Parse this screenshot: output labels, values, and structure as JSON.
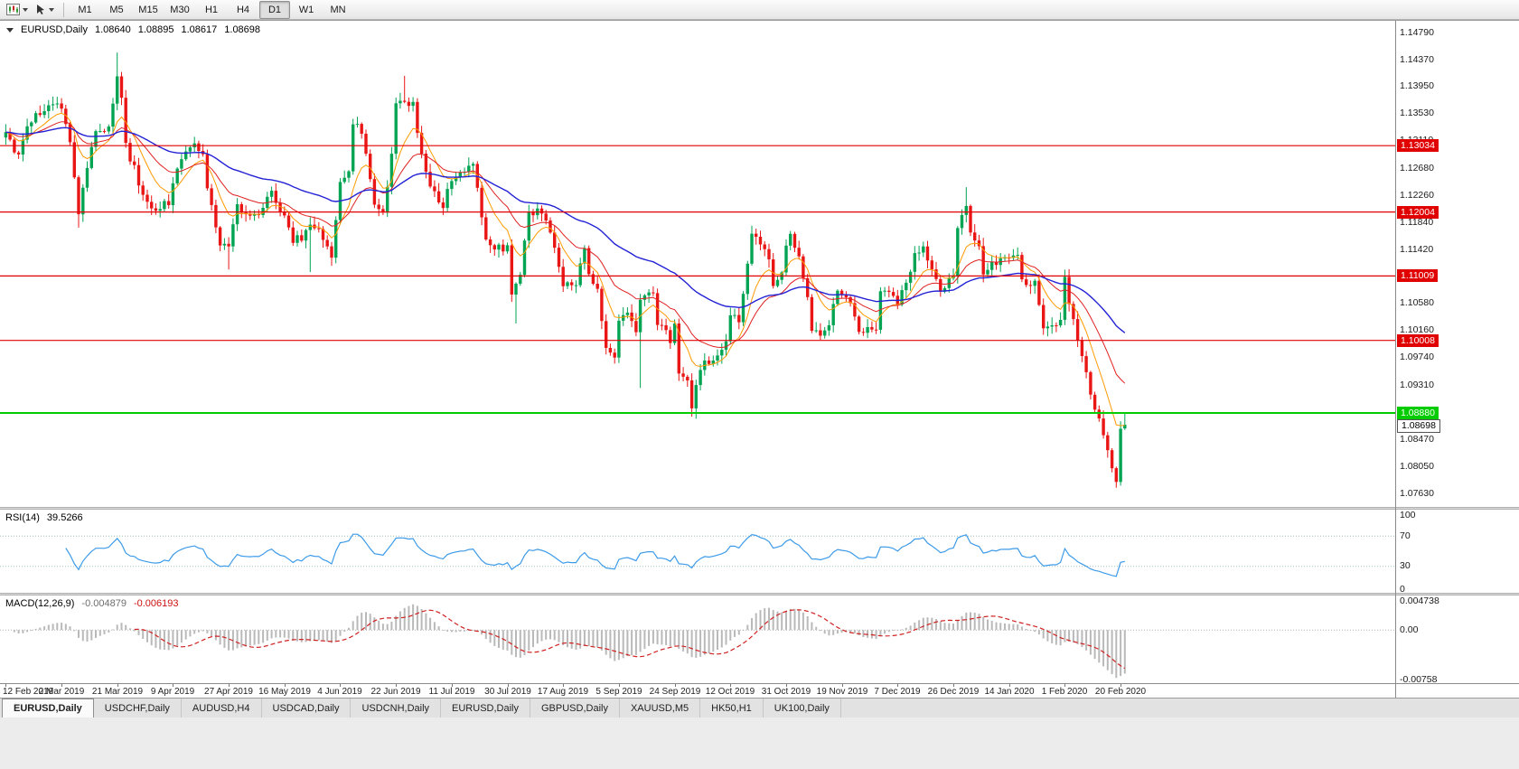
{
  "ui": {
    "timeframes": [
      {
        "label": "M1",
        "active": false
      },
      {
        "label": "M5",
        "active": false
      },
      {
        "label": "M15",
        "active": false
      },
      {
        "label": "M30",
        "active": false
      },
      {
        "label": "H1",
        "active": false
      },
      {
        "label": "H4",
        "active": false
      },
      {
        "label": "D1",
        "active": true
      },
      {
        "label": "W1",
        "active": false
      },
      {
        "label": "MN",
        "active": false
      }
    ],
    "chart": {
      "symbol": "EURUSD,Daily",
      "open": "1.08640",
      "high": "1.08895",
      "low": "1.08617",
      "close": "1.08698"
    },
    "rsi": {
      "label": "RSI(14)",
      "value": "39.5266"
    },
    "macd": {
      "label": "MACD(12,26,9)",
      "main_value": "-0.004879",
      "signal_value": "-0.006193"
    },
    "tabs": [
      {
        "label": "EURUSD,Daily",
        "active": true
      },
      {
        "label": "USDCHF,Daily",
        "active": false
      },
      {
        "label": "AUDUSD,H4",
        "active": false
      },
      {
        "label": "USDCAD,Daily",
        "active": false
      },
      {
        "label": "USDCNH,Daily",
        "active": false
      },
      {
        "label": "EURUSD,Daily",
        "active": false
      },
      {
        "label": "GBPUSD,Daily",
        "active": false
      },
      {
        "label": "XAUUSD,M5",
        "active": false
      },
      {
        "label": "HK50,H1",
        "active": false
      },
      {
        "label": "UK100,Daily",
        "active": false
      }
    ]
  },
  "chart_data": {
    "type": "candlestick",
    "symbol": "EURUSD",
    "period": "Daily",
    "bars": 262,
    "price_max": 1.14975,
    "price_min": 1.0742,
    "y_ticks": [
      1.1479,
      1.1437,
      1.1395,
      1.1353,
      1.1311,
      1.1268,
      1.1226,
      1.1184,
      1.1142,
      1.11,
      1.1058,
      1.1016,
      1.0974,
      1.0931,
      1.0889,
      1.0847,
      1.0805,
      1.0763
    ],
    "x_labels": [
      "12 Feb 2019",
      "2 Mar 2019",
      "21 Mar 2019",
      "9 Apr 2019",
      "27 Apr 2019",
      "16 May 2019",
      "4 Jun 2019",
      "22 Jun 2019",
      "11 Jul 2019",
      "30 Jul 2019",
      "17 Aug 2019",
      "5 Sep 2019",
      "24 Sep 2019",
      "12 Oct 2019",
      "31 Oct 2019",
      "19 Nov 2019",
      "7 Dec 2019",
      "26 Dec 2019",
      "14 Jan 2020",
      "1 Feb 2020",
      "20 Feb 2020"
    ],
    "horizontal_lines": [
      {
        "price": 1.13034,
        "color": "#e00000",
        "width": 1.2,
        "kind": "resistance"
      },
      {
        "price": 1.12004,
        "color": "#e00000",
        "width": 1.2,
        "kind": "resistance"
      },
      {
        "price": 1.11009,
        "color": "#e00000",
        "width": 1.2,
        "kind": "resistance"
      },
      {
        "price": 1.10008,
        "color": "#e00000",
        "width": 1.2,
        "kind": "resistance"
      },
      {
        "price": 1.0888,
        "color": "#00cc00",
        "width": 2,
        "kind": "support"
      }
    ],
    "moving_averages": [
      {
        "name": "fast-ema",
        "kind": "ema",
        "period": 9,
        "color": "#ff9a00",
        "width": 1
      },
      {
        "name": "mid-ema",
        "kind": "ema",
        "period": 21,
        "color": "#e02020",
        "width": 1
      },
      {
        "name": "slow-ema",
        "kind": "ema",
        "period": 55,
        "color": "#2323d5",
        "width": 1.4
      }
    ],
    "last_bar": {
      "open": 1.0864,
      "high": 1.08895,
      "low": 1.08617,
      "close": 1.08698
    },
    "anchors": [
      [
        0,
        1.1328
      ],
      [
        2,
        1.1296
      ],
      [
        3,
        1.1288
      ],
      [
        5,
        1.134
      ],
      [
        9,
        1.1359
      ],
      [
        12,
        1.1373
      ],
      [
        13,
        1.1365
      ],
      [
        15,
        1.1306
      ],
      [
        17,
        1.1194
      ],
      [
        18,
        1.1235
      ],
      [
        21,
        1.1326
      ],
      [
        24,
        1.1335
      ],
      [
        26,
        1.141
      ],
      [
        27,
        1.1375
      ],
      [
        28,
        1.1302
      ],
      [
        30,
        1.1268
      ],
      [
        32,
        1.1224
      ],
      [
        35,
        1.1204
      ],
      [
        38,
        1.1216
      ],
      [
        40,
        1.1264
      ],
      [
        43,
        1.13
      ],
      [
        44,
        1.1304
      ],
      [
        46,
        1.1296
      ],
      [
        47,
        1.1232
      ],
      [
        50,
        1.1154
      ],
      [
        52,
        1.115
      ],
      [
        54,
        1.1215
      ],
      [
        55,
        1.1194
      ],
      [
        57,
        1.12
      ],
      [
        59,
        1.1192
      ],
      [
        62,
        1.1233
      ],
      [
        64,
        1.1206
      ],
      [
        67,
        1.1158
      ],
      [
        69,
        1.1162
      ],
      [
        71,
        1.1182
      ],
      [
        74,
        1.1163
      ],
      [
        76,
        1.1132
      ],
      [
        78,
        1.1248
      ],
      [
        80,
        1.127
      ],
      [
        81,
        1.1335
      ],
      [
        83,
        1.1328
      ],
      [
        86,
        1.121
      ],
      [
        88,
        1.1193
      ],
      [
        90,
        1.1294
      ],
      [
        91,
        1.1368
      ],
      [
        93,
        1.137
      ],
      [
        95,
        1.1373
      ],
      [
        97,
        1.1285
      ],
      [
        100,
        1.1227
      ],
      [
        102,
        1.1208
      ],
      [
        104,
        1.1253
      ],
      [
        107,
        1.126
      ],
      [
        109,
        1.1277
      ],
      [
        112,
        1.1152
      ],
      [
        114,
        1.1145
      ],
      [
        116,
        1.1143
      ],
      [
        117,
        1.1155
      ],
      [
        118,
        1.1077
      ],
      [
        119,
        1.1085
      ],
      [
        120,
        1.1108
      ],
      [
        122,
        1.12
      ],
      [
        124,
        1.1203
      ],
      [
        127,
        1.1171
      ],
      [
        129,
        1.1109
      ],
      [
        130,
        1.109
      ],
      [
        133,
        1.1085
      ],
      [
        135,
        1.1145
      ],
      [
        136,
        1.1101
      ],
      [
        138,
        1.1078
      ],
      [
        140,
        1.0985
      ],
      [
        142,
        1.097
      ],
      [
        143,
        1.1035
      ],
      [
        145,
        1.1047
      ],
      [
        147,
        1.1011
      ],
      [
        148,
        1.1065
      ],
      [
        149,
        1.1073
      ],
      [
        151,
        1.1072
      ],
      [
        152,
        1.103
      ],
      [
        154,
        1.1017
      ],
      [
        155,
        1.0991
      ],
      [
        156,
        1.1021
      ],
      [
        157,
        1.0943
      ],
      [
        159,
        1.0939
      ],
      [
        160,
        1.0899
      ],
      [
        161,
        1.0932
      ],
      [
        163,
        1.0965
      ],
      [
        165,
        1.097
      ],
      [
        167,
        1.0989
      ],
      [
        168,
        1.1005
      ],
      [
        169,
        1.104
      ],
      [
        171,
        1.1033
      ],
      [
        173,
        1.1125
      ],
      [
        174,
        1.117
      ],
      [
        176,
        1.115
      ],
      [
        178,
        1.1131
      ],
      [
        179,
        1.108
      ],
      [
        181,
        1.1108
      ],
      [
        182,
        1.1152
      ],
      [
        183,
        1.1165
      ],
      [
        185,
        1.1127
      ],
      [
        187,
        1.1068
      ],
      [
        188,
        1.1018
      ],
      [
        190,
        1.101
      ],
      [
        192,
        1.1021
      ],
      [
        193,
        1.1052
      ],
      [
        194,
        1.1072
      ],
      [
        195,
        1.1078
      ],
      [
        197,
        1.1058
      ],
      [
        199,
        1.1015
      ],
      [
        203,
        1.1018
      ],
      [
        204,
        1.1078
      ],
      [
        206,
        1.1077
      ],
      [
        208,
        1.106
      ],
      [
        210,
        1.1093
      ],
      [
        212,
        1.1133
      ],
      [
        214,
        1.1145
      ],
      [
        216,
        1.1113
      ],
      [
        218,
        1.1078
      ],
      [
        219,
        1.1087
      ],
      [
        221,
        1.1097
      ],
      [
        222,
        1.1178
      ],
      [
        224,
        1.121
      ],
      [
        225,
        1.1172
      ],
      [
        227,
        1.115
      ],
      [
        228,
        1.1103
      ],
      [
        230,
        1.1122
      ],
      [
        234,
        1.1128
      ],
      [
        236,
        1.1136
      ],
      [
        237,
        1.109
      ],
      [
        240,
        1.1092
      ],
      [
        242,
        1.1024
      ],
      [
        244,
        1.1022
      ],
      [
        246,
        1.1032
      ],
      [
        247,
        1.1093
      ],
      [
        248,
        1.106
      ],
      [
        250,
        1.1
      ],
      [
        252,
        1.0945
      ],
      [
        253,
        1.091
      ],
      [
        255,
        1.0873
      ],
      [
        257,
        1.0831
      ],
      [
        258,
        1.08
      ],
      [
        259,
        1.0787
      ],
      [
        260,
        1.0862
      ],
      [
        261,
        1.087
      ]
    ],
    "spikes": [
      {
        "i": 17,
        "low": 1.1176
      },
      {
        "i": 26,
        "high": 1.1448
      },
      {
        "i": 52,
        "low": 1.1111
      },
      {
        "i": 71,
        "low": 1.1107
      },
      {
        "i": 93,
        "high": 1.1412
      },
      {
        "i": 119,
        "low": 1.1027
      },
      {
        "i": 148,
        "low": 1.0927
      },
      {
        "i": 161,
        "low": 1.0879
      },
      {
        "i": 224,
        "high": 1.1239
      },
      {
        "i": 259,
        "low": 1.0777
      }
    ],
    "indicators": {
      "rsi": {
        "period": 14,
        "current": 39.5266,
        "levels": [
          70,
          30
        ],
        "scale": [
          0,
          100
        ],
        "axis": [
          {
            "value": 100,
            "label": "100"
          },
          {
            "value": 70,
            "label": "70"
          },
          {
            "value": 30,
            "label": "30"
          },
          {
            "value": 0,
            "label": "0"
          }
        ]
      },
      "macd": {
        "fast": 12,
        "slow": 26,
        "signal": 9,
        "current_main": -0.004879,
        "current_signal": -0.006193,
        "scale_max": 0.004738,
        "scale_min": -0.00758,
        "axis": [
          {
            "value": 0.004738,
            "label": "0.004738"
          },
          {
            "value": 0,
            "label": "0.00"
          },
          {
            "value": -0.00758,
            "label": "-0.00758"
          }
        ]
      }
    }
  }
}
